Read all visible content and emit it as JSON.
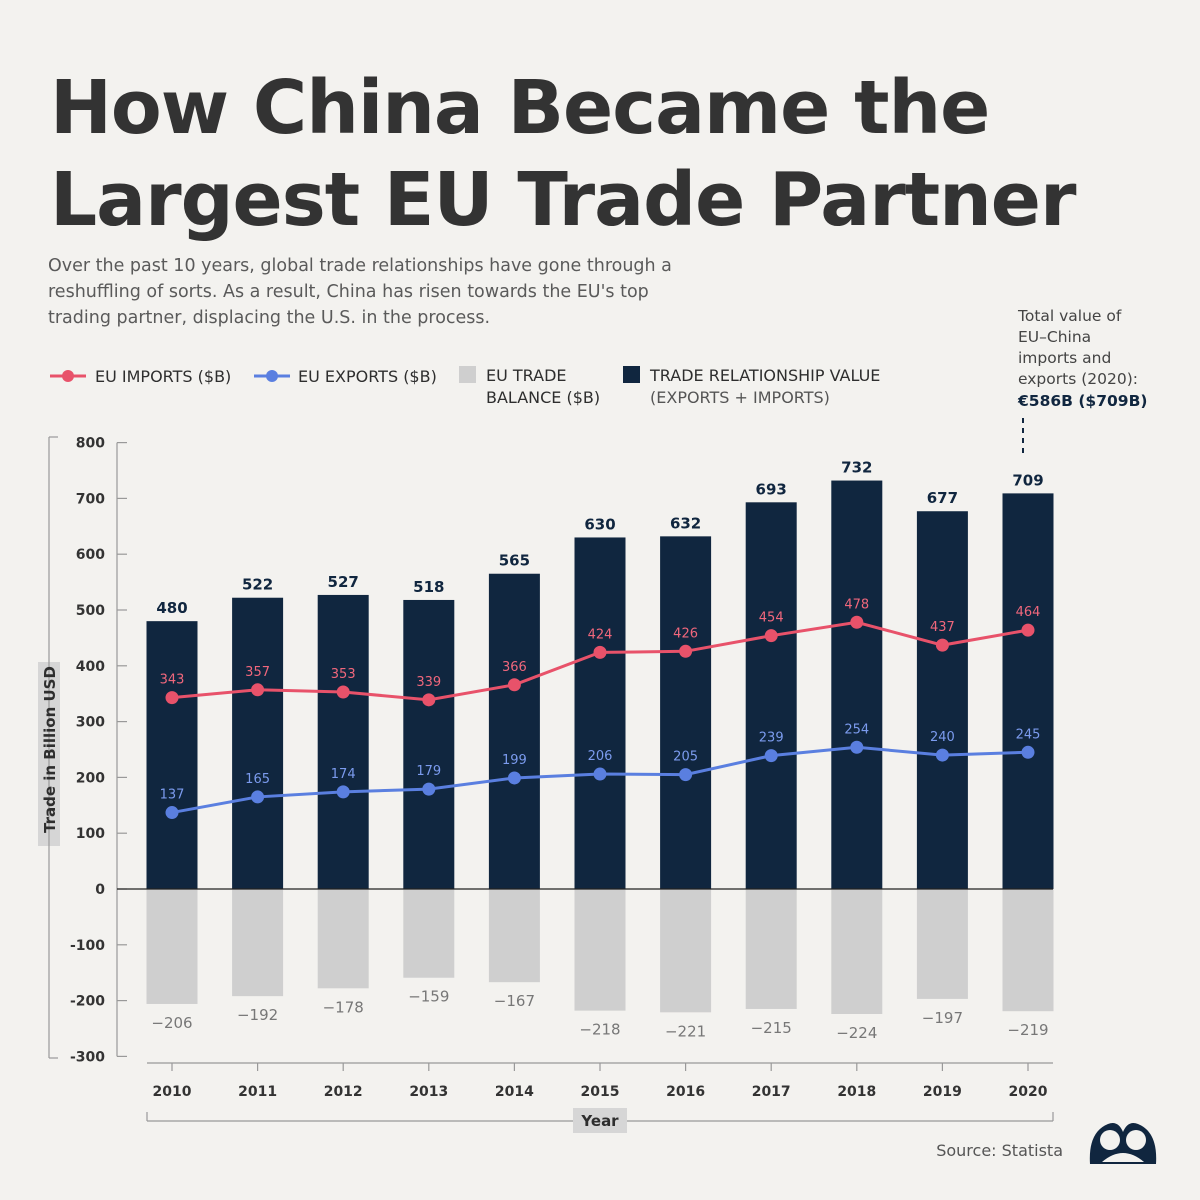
{
  "title_lines": [
    "How China Became the",
    "Largest EU Trade Partner"
  ],
  "subtitle": "Over the past 10 years, global trade relationships have gone through a reshuffling of sorts. As a result, China has risen towards the EU's top trading partner, displacing the U.S. in the process.",
  "legend": {
    "imports": "EU IMPORTS ($B)",
    "exports": "EU EXPORTS ($B)",
    "balance_line1": "EU TRADE",
    "balance_line2": "BALANCE ($B)",
    "value_line1": "TRADE RELATIONSHIP VALUE",
    "value_line2": "(EXPORTS + IMPORTS)"
  },
  "annotation": {
    "lines": [
      "Total value of",
      "EU–China",
      "imports and",
      "exports (2020):"
    ],
    "highlight": "€586B ($709B)"
  },
  "source": "Source: Statista",
  "colors": {
    "imports": "#e8526a",
    "exports": "#5a7fe0",
    "balance": "#cfcfcf",
    "value": "#10263f",
    "background": "#f3f2ef"
  },
  "chart_data": {
    "type": "bar",
    "categories": [
      "2010",
      "2011",
      "2012",
      "2013",
      "2014",
      "2015",
      "2016",
      "2017",
      "2018",
      "2019",
      "2020"
    ],
    "series": [
      {
        "name": "TRADE RELATIONSHIP VALUE (EXPORTS + IMPORTS)",
        "type": "bar",
        "values": [
          480,
          522,
          527,
          518,
          565,
          630,
          632,
          693,
          732,
          677,
          709
        ]
      },
      {
        "name": "EU TRADE BALANCE ($B)",
        "type": "bar",
        "values": [
          -206,
          -192,
          -178,
          -159,
          -167,
          -218,
          -221,
          -215,
          -224,
          -197,
          -219
        ]
      },
      {
        "name": "EU IMPORTS ($B)",
        "type": "line",
        "values": [
          343,
          357,
          353,
          339,
          366,
          424,
          426,
          454,
          478,
          437,
          464
        ]
      },
      {
        "name": "EU EXPORTS ($B)",
        "type": "line",
        "values": [
          137,
          165,
          174,
          179,
          199,
          206,
          205,
          239,
          254,
          240,
          245
        ]
      }
    ],
    "yticks": [
      800,
      700,
      600,
      500,
      400,
      300,
      200,
      100,
      0,
      -100,
      -200,
      -300
    ],
    "ylim": [
      -300,
      800
    ],
    "xlabel": "Year",
    "ylabel": "Trade in Billion USD",
    "legend_position": "top"
  }
}
